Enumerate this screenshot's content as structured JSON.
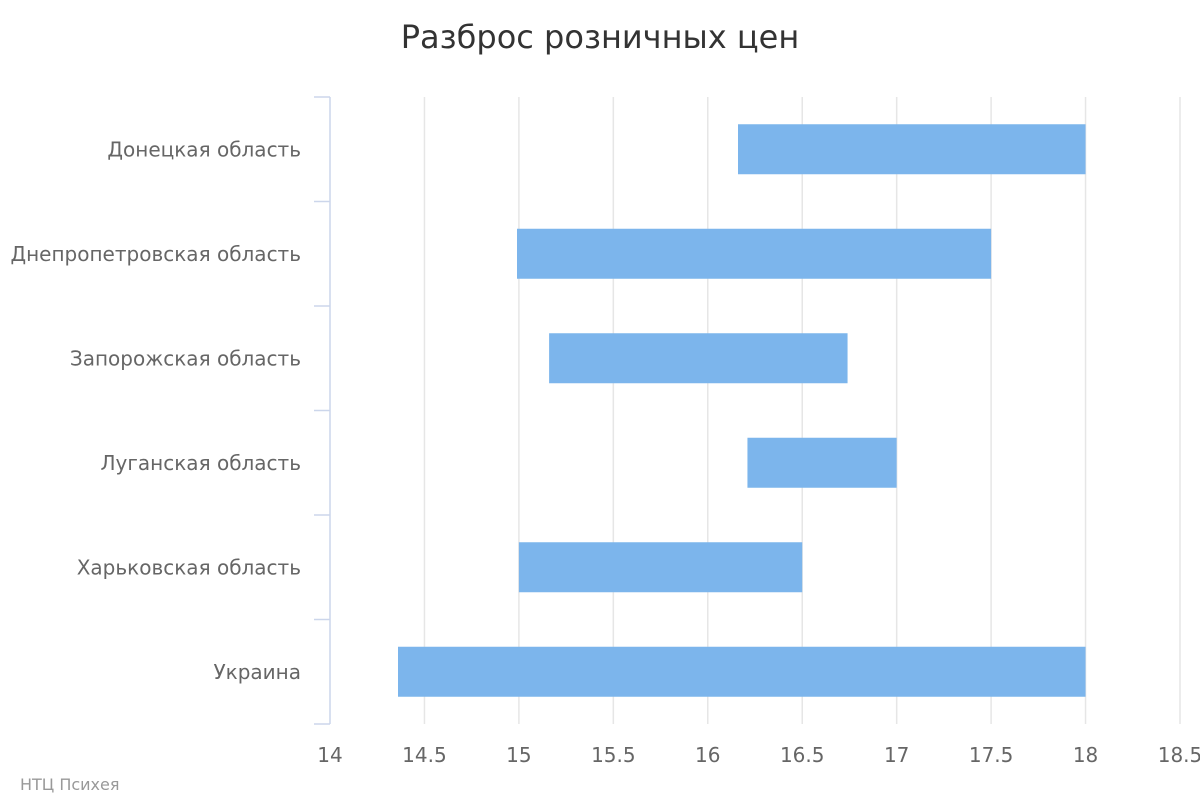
{
  "chart_data": {
    "type": "bar",
    "orientation": "horizontal",
    "variant": "range",
    "title": "Разброс розничных цен",
    "xlabel": "",
    "ylabel": "",
    "xlim": [
      14,
      18.5
    ],
    "x_ticks": [
      "14",
      "14.5",
      "15",
      "15.5",
      "16",
      "16.5",
      "17",
      "17.5",
      "18",
      "18.5"
    ],
    "grid": true,
    "legend": "none",
    "color": "#7cb5ec",
    "categories": [
      "Донецкая область",
      "Днепропетровская область",
      "Запорожская область",
      "Луганская область",
      "Харьковская область",
      "Украина"
    ],
    "ranges": [
      {
        "low": 16.16,
        "high": 18.0
      },
      {
        "low": 14.99,
        "high": 17.5
      },
      {
        "low": 15.16,
        "high": 16.74
      },
      {
        "low": 16.21,
        "high": 17.0
      },
      {
        "low": 15.0,
        "high": 16.5
      },
      {
        "low": 14.36,
        "high": 18.0
      }
    ]
  },
  "credit": "НТЦ Психея"
}
